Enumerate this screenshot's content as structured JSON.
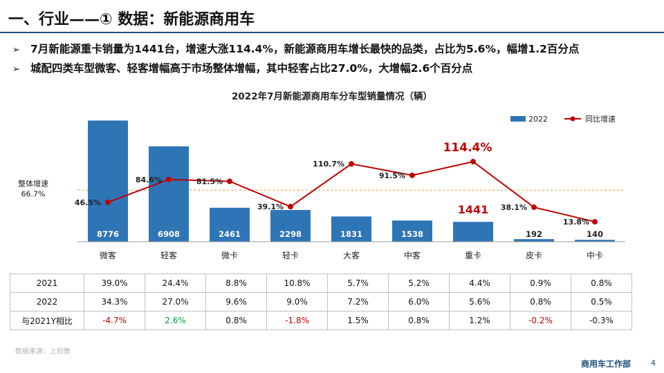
{
  "header": {
    "title": "一、行业——① 数据：新能源商用车"
  },
  "bullets": [
    "7月新能源重卡销量为1441台，增速大涨114.4%，新能源商用车增长最快的品类，占比为5.6%，幅增1.2百分点",
    "城配四类车型微客、轻客增幅高于市场整体增幅，其中轻客占比27.0%，大增幅2.6个百分点"
  ],
  "bullet_marker": "➢",
  "chart_data": {
    "type": "bar",
    "title": "2022年7月新能源商用车分车型销量情况（辆）",
    "categories": [
      "微客",
      "轻客",
      "微卡",
      "轻卡",
      "大客",
      "中客",
      "重卡",
      "皮卡",
      "中卡"
    ],
    "series": [
      {
        "name": "2022",
        "type": "bar",
        "values": [
          8776,
          6908,
          2461,
          2298,
          1831,
          1538,
          1441,
          192,
          140
        ],
        "color": "#2e75b6"
      },
      {
        "name": "同比增速",
        "type": "line",
        "values": [
          46.5,
          84.6,
          81.5,
          39.1,
          110.7,
          91.5,
          114.4,
          38.1,
          13.8
        ],
        "labels": [
          "46.5%",
          "84.6%",
          "81.5%",
          "39.1%",
          "110.7%",
          "91.5%",
          "114.4%",
          "38.1%",
          "13.8%"
        ],
        "color": "#c00000"
      }
    ],
    "bar_labels": [
      "8776",
      "6908",
      "2461",
      "2298",
      "1831",
      "1538",
      "1441",
      "192",
      "140"
    ],
    "bar_ylim": [
      0,
      9500
    ],
    "line_ylim": [
      0,
      200
    ],
    "reference_line": {
      "label": "整体增速",
      "value_label": "66.7%",
      "value": 66.7,
      "color": "#e0a030"
    },
    "highlight": {
      "category": "重卡",
      "color": "#c00000"
    },
    "legend_position": "top-right",
    "grid": false
  },
  "table": {
    "rows": [
      {
        "label": "2021",
        "values": [
          "39.0%",
          "24.4%",
          "8.8%",
          "10.8%",
          "5.7%",
          "5.2%",
          "4.4%",
          "0.9%",
          "0.8%"
        ],
        "colors": [
          "",
          "",
          "",
          "",
          "",
          "",
          "",
          "",
          ""
        ]
      },
      {
        "label": "2022",
        "values": [
          "34.3%",
          "27.0%",
          "9.6%",
          "9.0%",
          "7.2%",
          "6.0%",
          "5.6%",
          "0.8%",
          "0.5%"
        ],
        "colors": [
          "",
          "",
          "",
          "",
          "",
          "",
          "",
          "",
          ""
        ]
      },
      {
        "label": "与2021Y相比",
        "values": [
          "-4.7%",
          "2.6%",
          "0.8%",
          "-1.8%",
          "1.5%",
          "0.8%",
          "1.2%",
          "-0.2%",
          "-0.3%"
        ],
        "colors": [
          "#c00000",
          "#00a040",
          "",
          "#c00000",
          "",
          "",
          "",
          "#c00000",
          ""
        ]
      }
    ]
  },
  "footer": {
    "source": "数据来源：上险数",
    "department": "商用车工作部",
    "page": "4"
  }
}
